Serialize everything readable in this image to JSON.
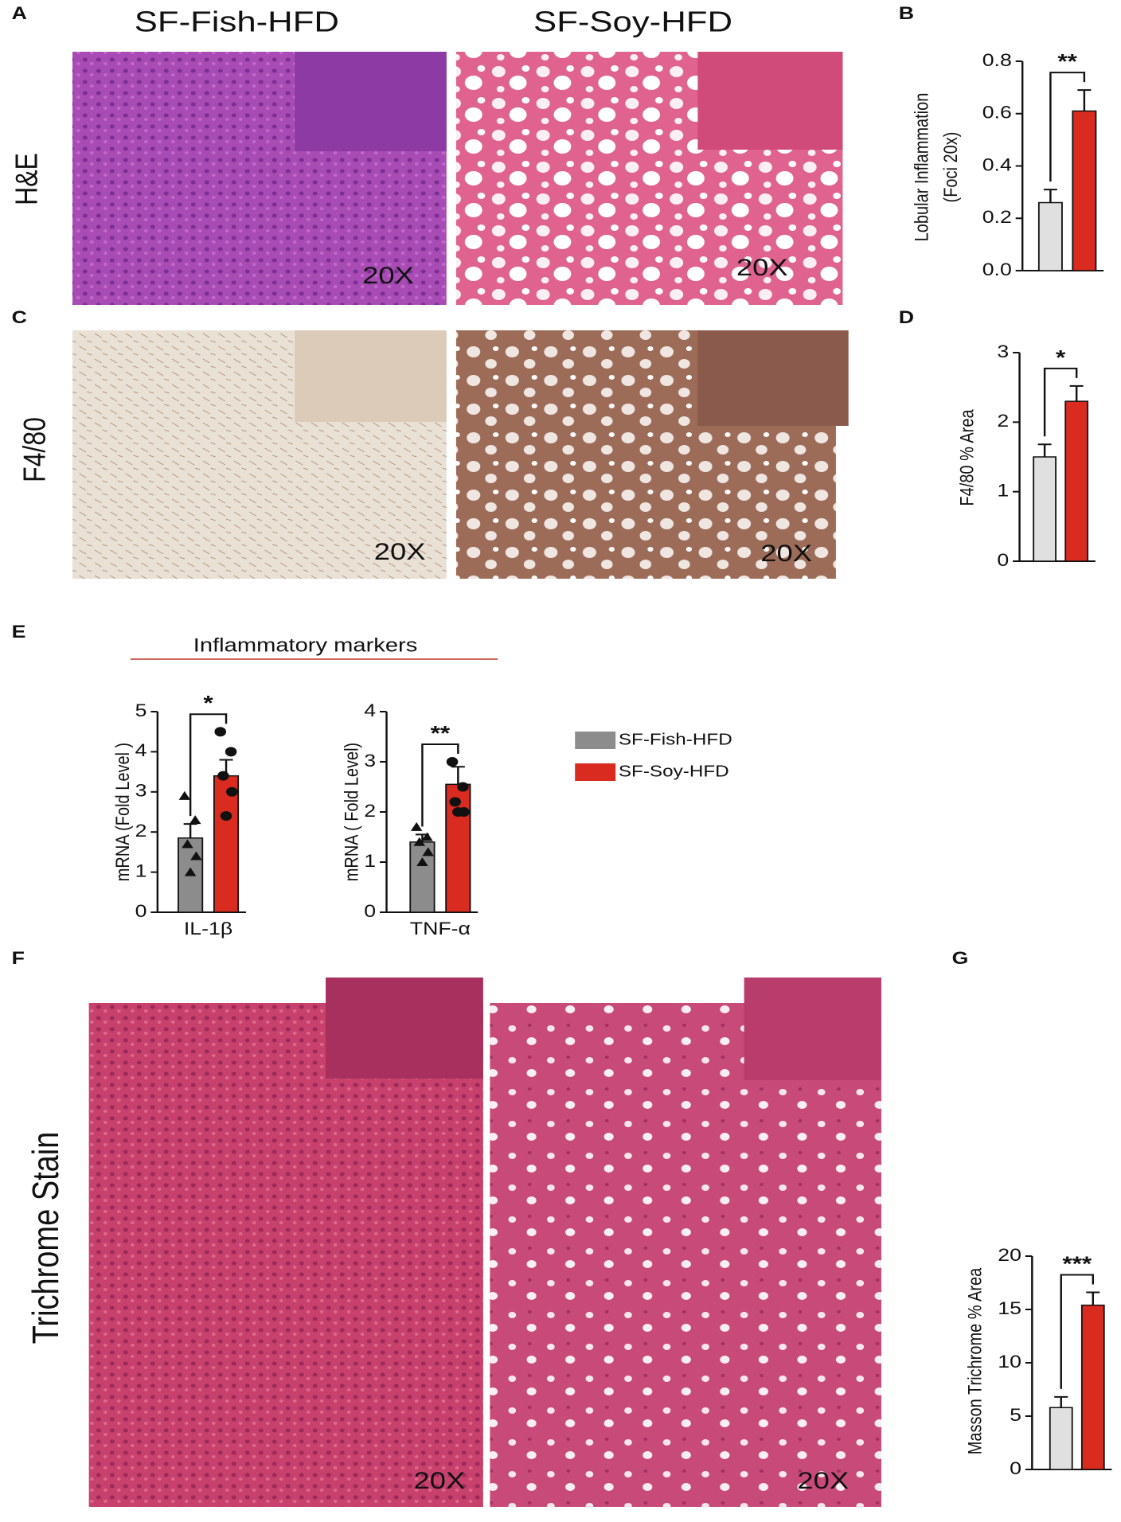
{
  "figure": {
    "panels": [
      "A",
      "B",
      "C",
      "D",
      "E",
      "F",
      "G"
    ],
    "columns": [
      "SF-Fish-HFD",
      "SF-Soy-HFD"
    ],
    "rows": [
      "H&E",
      "F4/80",
      "Trichrome Stain"
    ],
    "image_labels": [
      "20X",
      "20X",
      "20X",
      "20X",
      "20X",
      "20X"
    ],
    "group_title": "Inflammatory markers",
    "legend": [
      {
        "name": "SF-Fish-HFD",
        "color": "#8c8c8c"
      },
      {
        "name": "SF-Soy-HFD",
        "color": "#d92b20"
      }
    ]
  },
  "chart_data": [
    {
      "type": "bar",
      "ylabel": [
        "Lobular Inflammation",
        "(Foci 20x)"
      ],
      "categories": [
        null
      ],
      "series": [
        {
          "color": "#e0e0e0",
          "values": [
            0.26
          ],
          "errors": [
            0.05
          ]
        },
        {
          "color": "#d92b20",
          "values": [
            0.61
          ],
          "errors": [
            0.08
          ]
        }
      ],
      "ylim": [
        0,
        0.8
      ],
      "yticks": [
        {
          "value": 0,
          "label": "0.0"
        },
        {
          "value": 0.2,
          "label": "0.2"
        },
        {
          "value": 0.4,
          "label": "0.4"
        },
        {
          "value": 0.6,
          "label": "0.6"
        },
        {
          "value": 0.8,
          "label": "0.8"
        }
      ],
      "significance": "**"
    },
    {
      "type": "bar",
      "ylabel": [
        "F4/80 % Area"
      ],
      "categories": [
        null
      ],
      "series": [
        {
          "color": "#e0e0e0",
          "values": [
            1.5
          ],
          "errors": [
            0.18
          ]
        },
        {
          "color": "#d92b20",
          "values": [
            2.3
          ],
          "errors": [
            0.22
          ]
        }
      ],
      "ylim": [
        0,
        3
      ],
      "yticks": [
        0,
        1,
        2,
        3
      ],
      "significance": "*"
    },
    {
      "type": "bar",
      "ylabel": [
        "mRNA (Fold Level )"
      ],
      "categories": [
        "IL-1β"
      ],
      "series": [
        {
          "color": "#8c8c8c",
          "values": [
            1.85
          ],
          "errors": [
            0.35
          ],
          "points": [
            2.9,
            2.3,
            1.7,
            1.4,
            1.0
          ]
        },
        {
          "color": "#d92b20",
          "values": [
            3.4
          ],
          "errors": [
            0.4
          ],
          "points": [
            4.5,
            4.0,
            3.4,
            3.0,
            2.4
          ]
        }
      ],
      "ylim": [
        0,
        5
      ],
      "yticks": [
        0,
        1,
        2,
        3,
        4,
        5
      ],
      "significance": "*"
    },
    {
      "type": "bar",
      "ylabel": [
        "mRNA ( Fold Level)"
      ],
      "categories": [
        "TNF-α"
      ],
      "series": [
        {
          "color": "#8c8c8c",
          "values": [
            1.4
          ],
          "errors": [
            0.15
          ],
          "points": [
            1.7,
            1.5,
            1.4,
            1.2,
            1.0
          ]
        },
        {
          "color": "#d92b20",
          "values": [
            2.55
          ],
          "errors": [
            0.35
          ],
          "points": [
            3.0,
            2.5,
            2.2,
            2.0,
            2.0
          ]
        }
      ],
      "ylim": [
        0,
        4
      ],
      "yticks": [
        0,
        1,
        2,
        3,
        4
      ],
      "significance": "**"
    },
    {
      "type": "bar",
      "ylabel": [
        "Masson Trichrome % Area"
      ],
      "categories": [
        null
      ],
      "series": [
        {
          "color": "#e0e0e0",
          "values": [
            5.8
          ],
          "errors": [
            1.0
          ]
        },
        {
          "color": "#d92b20",
          "values": [
            15.4
          ],
          "errors": [
            1.2
          ]
        }
      ],
      "ylim": [
        0,
        20
      ],
      "yticks": [
        0,
        5,
        10,
        15,
        20
      ],
      "significance": "***"
    }
  ]
}
